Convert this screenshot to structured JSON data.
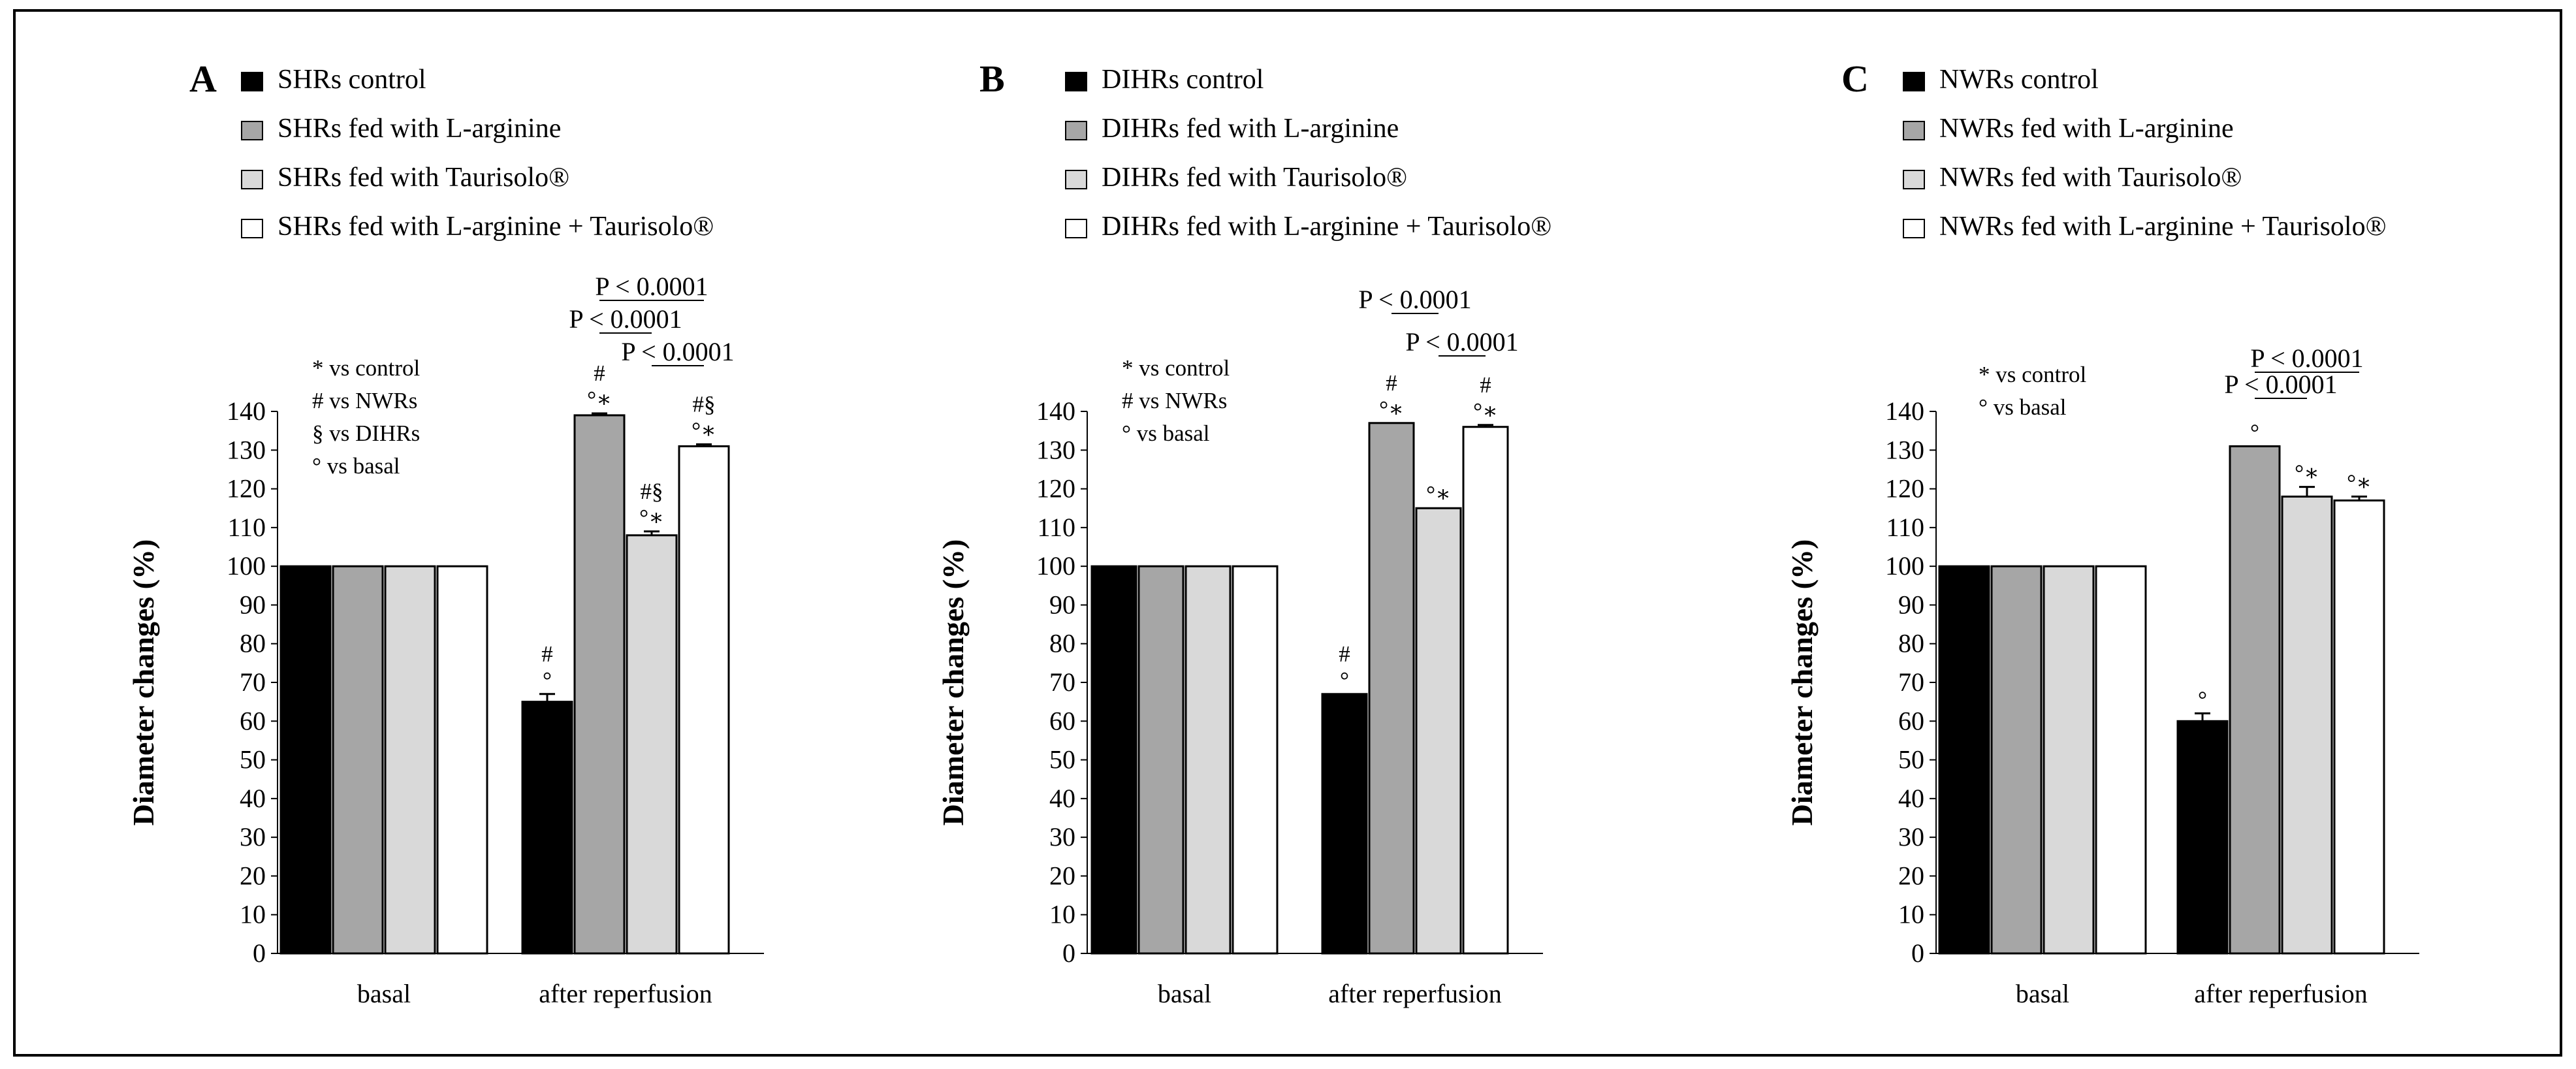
{
  "colors": {
    "control": "#000000",
    "larginine": "#a6a6a6",
    "taurisolo": "#d9d9d9",
    "combo": "#ffffff",
    "frame": "#000000"
  },
  "chart_data": [
    {
      "type": "bar",
      "panel_label": "A",
      "ylabel": "Diameter changes (%)",
      "ylim": [
        0,
        140
      ],
      "yticks": [
        "0",
        "10",
        "20",
        "30",
        "40",
        "50",
        "60",
        "70",
        "80",
        "90",
        "100",
        "110",
        "120",
        "130",
        "140"
      ],
      "categories": [
        "basal",
        "after reperfusion"
      ],
      "series": [
        {
          "name": "SHRs control",
          "values": [
            100,
            65
          ],
          "errors": [
            0,
            2
          ],
          "marks": [
            "",
            "#\n°"
          ]
        },
        {
          "name": "SHRs fed with L-arginine",
          "values": [
            100,
            139
          ],
          "errors": [
            0,
            0.5
          ],
          "marks": [
            "",
            "#\n°∗"
          ]
        },
        {
          "name": "SHRs fed with Taurisolo®",
          "values": [
            100,
            108
          ],
          "errors": [
            0,
            1
          ],
          "marks": [
            "",
            "#§\n°∗"
          ]
        },
        {
          "name": "SHRs fed with L-arginine + Taurisolo®",
          "values": [
            100,
            131
          ],
          "errors": [
            0,
            0.5
          ],
          "marks": [
            "",
            "#§\n°∗"
          ]
        }
      ],
      "annotation_lines": [
        "* vs control",
        "# vs NWRs",
        "§ vs DIHRs",
        "° vs basal"
      ],
      "brackets": [
        {
          "from_series": 1,
          "to_series": 3,
          "label": "P < 0.0001"
        },
        {
          "from_series": 1,
          "to_series": 2,
          "label": "P < 0.0001"
        },
        {
          "from_series": 2,
          "to_series": 3,
          "label": "P < 0.0001"
        }
      ]
    },
    {
      "type": "bar",
      "panel_label": "B",
      "ylabel": "Diameter changes (%)",
      "ylim": [
        0,
        140
      ],
      "yticks": [
        "0",
        "10",
        "20",
        "30",
        "40",
        "50",
        "60",
        "70",
        "80",
        "90",
        "100",
        "110",
        "120",
        "130",
        "140"
      ],
      "categories": [
        "basal",
        "after reperfusion"
      ],
      "series": [
        {
          "name": "DIHRs control",
          "values": [
            100,
            67
          ],
          "errors": [
            0,
            0
          ],
          "marks": [
            "",
            "#\n°"
          ]
        },
        {
          "name": "DIHRs fed with L-arginine",
          "values": [
            100,
            137
          ],
          "errors": [
            0,
            0
          ],
          "marks": [
            "",
            "#\n°∗"
          ]
        },
        {
          "name": "DIHRs fed with Taurisolo®",
          "values": [
            100,
            115
          ],
          "errors": [
            0,
            0
          ],
          "marks": [
            "",
            "°∗"
          ]
        },
        {
          "name": "DIHRs fed with L-arginine + Taurisolo®",
          "values": [
            100,
            136
          ],
          "errors": [
            0,
            0.5
          ],
          "marks": [
            "",
            "#\n°∗"
          ]
        }
      ],
      "annotation_lines": [
        "* vs control",
        "# vs NWRs",
        "° vs basal"
      ],
      "brackets": [
        {
          "from_series": 1,
          "to_series": 2,
          "label": "P < 0.0001"
        },
        {
          "from_series": 2,
          "to_series": 3,
          "label": "P < 0.0001"
        }
      ]
    },
    {
      "type": "bar",
      "panel_label": "C",
      "ylabel": "Diameter changes (%)",
      "ylim": [
        0,
        140
      ],
      "yticks": [
        "0",
        "10",
        "20",
        "30",
        "40",
        "50",
        "60",
        "70",
        "80",
        "90",
        "100",
        "110",
        "120",
        "130",
        "140"
      ],
      "categories": [
        "basal",
        "after reperfusion"
      ],
      "series": [
        {
          "name": "NWRs control",
          "values": [
            100,
            60
          ],
          "errors": [
            0,
            2
          ],
          "marks": [
            "",
            "°"
          ]
        },
        {
          "name": "NWRs fed with L-arginine",
          "values": [
            100,
            131
          ],
          "errors": [
            0,
            0
          ],
          "marks": [
            "",
            "°"
          ]
        },
        {
          "name": "NWRs fed with Taurisolo®",
          "values": [
            100,
            118
          ],
          "errors": [
            0,
            2.5
          ],
          "marks": [
            "",
            "°∗"
          ]
        },
        {
          "name": "NWRs fed with L-arginine + Taurisolo®",
          "values": [
            100,
            117
          ],
          "errors": [
            0,
            1
          ],
          "marks": [
            "",
            "°∗"
          ]
        }
      ],
      "annotation_lines": [
        "* vs control",
        "° vs basal"
      ],
      "brackets": [
        {
          "from_series": 1,
          "to_series": 3,
          "label": "P < 0.0001"
        },
        {
          "from_series": 1,
          "to_series": 2,
          "label": "P < 0.0001"
        }
      ]
    }
  ]
}
